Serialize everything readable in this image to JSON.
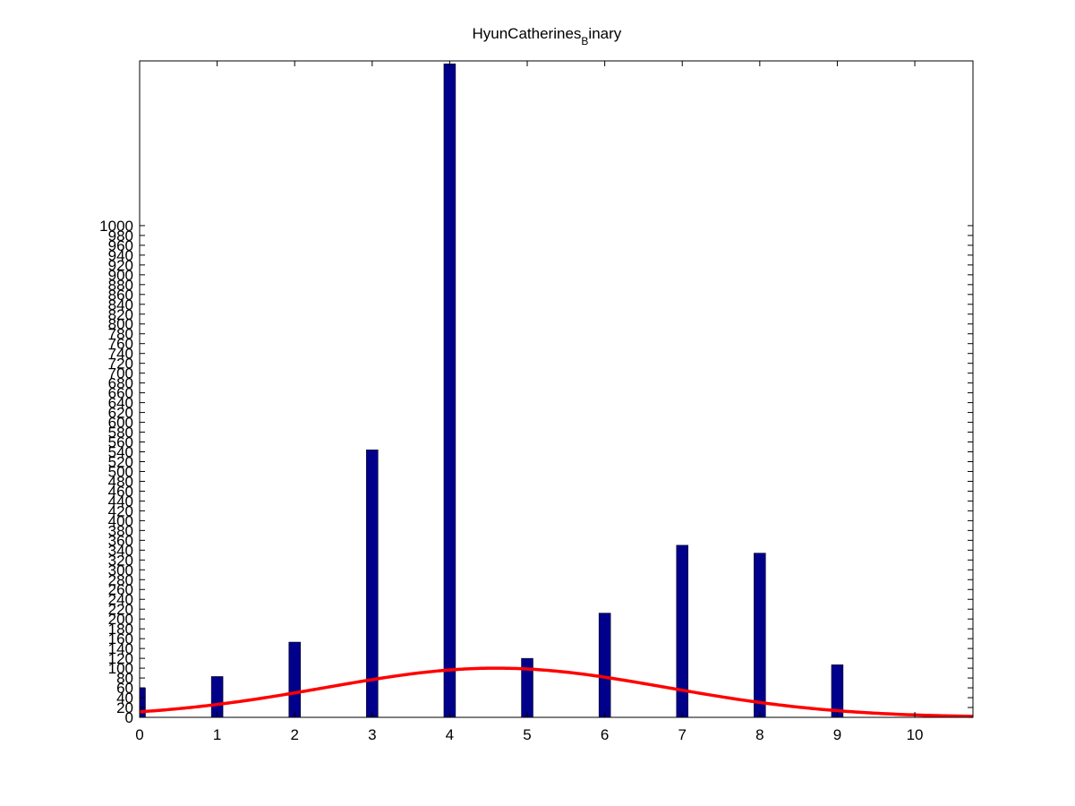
{
  "chart_data": {
    "type": "bar",
    "title": "HyunCatherines",
    "title_subscript": "B",
    "title_suffix": "inary",
    "xlabel": "",
    "ylabel": "",
    "x": [
      0,
      1,
      2,
      3,
      4,
      5,
      6,
      7,
      8,
      9
    ],
    "values": [
      60,
      83,
      153,
      544,
      1329,
      120,
      212,
      350,
      334,
      107
    ],
    "xlim": [
      0,
      10.75
    ],
    "ylim": [
      0,
      1335
    ],
    "xticks": [
      0,
      1,
      2,
      3,
      4,
      5,
      6,
      7,
      8,
      9,
      10
    ],
    "yticks": [
      0,
      20,
      40,
      60,
      80,
      100,
      120,
      140,
      160,
      180,
      200,
      220,
      240,
      260,
      280,
      300,
      320,
      340,
      360,
      380,
      400,
      420,
      440,
      460,
      480,
      500,
      520,
      540,
      560,
      580,
      600,
      620,
      640,
      660,
      680,
      700,
      720,
      740,
      760,
      780,
      800,
      820,
      840,
      860,
      880,
      900,
      920,
      940,
      960,
      980,
      1000
    ],
    "grid": false,
    "fit_curve": {
      "type": "gaussian",
      "peak": 100,
      "mean": 4.6,
      "sigma": 2.2
    },
    "colors": {
      "bars": "#00008b",
      "fit": "#ff0000"
    }
  }
}
